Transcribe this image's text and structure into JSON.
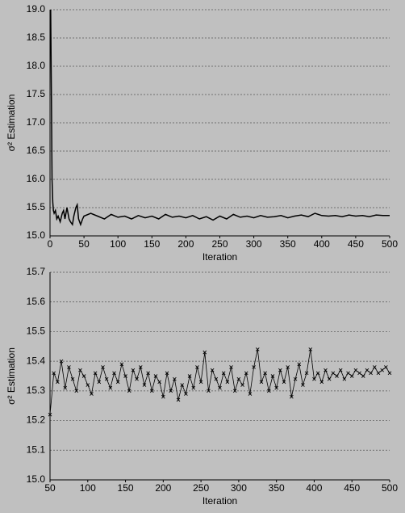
{
  "chart_data": [
    {
      "type": "line",
      "xlabel": "Iteration",
      "ylabel": "σ² Estimation",
      "color": "#000000",
      "grid": true,
      "marker": null,
      "xlim": [
        0,
        500
      ],
      "xticks": [
        0,
        50,
        100,
        150,
        200,
        250,
        300,
        350,
        400,
        450,
        500
      ],
      "ylim": [
        15.0,
        19.0
      ],
      "yticks": [
        {
          "value": 15.0,
          "label": "15.0"
        },
        15.5,
        {
          "value": 16.0,
          "label": "16.0"
        },
        16.5,
        {
          "value": 17.0,
          "label": "17.0"
        },
        17.5,
        {
          "value": 18.0,
          "label": "18.0"
        },
        18.5,
        {
          "value": 19.0,
          "label": "19.0"
        }
      ],
      "x": [
        1,
        2,
        3,
        4,
        5,
        6,
        8,
        10,
        12,
        15,
        18,
        20,
        22,
        25,
        28,
        30,
        33,
        35,
        38,
        40,
        42,
        45,
        48,
        50,
        60,
        70,
        80,
        90,
        100,
        110,
        120,
        130,
        140,
        150,
        160,
        170,
        180,
        190,
        200,
        210,
        220,
        230,
        240,
        250,
        260,
        270,
        280,
        290,
        300,
        310,
        320,
        330,
        340,
        350,
        360,
        370,
        380,
        390,
        400,
        410,
        420,
        430,
        440,
        450,
        460,
        470,
        480,
        490,
        500
      ],
      "values": [
        19.0,
        17.5,
        16.0,
        15.6,
        15.45,
        15.4,
        15.45,
        15.3,
        15.35,
        15.25,
        15.4,
        15.45,
        15.3,
        15.5,
        15.3,
        15.25,
        15.2,
        15.35,
        15.5,
        15.55,
        15.3,
        15.2,
        15.3,
        15.35,
        15.4,
        15.35,
        15.3,
        15.38,
        15.33,
        15.35,
        15.3,
        15.36,
        15.32,
        15.35,
        15.3,
        15.38,
        15.33,
        15.35,
        15.32,
        15.36,
        15.3,
        15.34,
        15.28,
        15.35,
        15.3,
        15.38,
        15.33,
        15.35,
        15.32,
        15.36,
        15.33,
        15.34,
        15.36,
        15.32,
        15.35,
        15.37,
        15.34,
        15.4,
        15.36,
        15.35,
        15.36,
        15.34,
        15.37,
        15.35,
        15.36,
        15.34,
        15.37,
        15.36,
        15.36
      ]
    },
    {
      "type": "line",
      "xlabel": "Iteration",
      "ylabel": "σ² Estimation",
      "color": "#000000",
      "grid": true,
      "marker": "x",
      "xlim": [
        50,
        500
      ],
      "xticks": [
        50,
        100,
        150,
        200,
        250,
        300,
        350,
        400,
        450,
        500
      ],
      "ylim": [
        15.0,
        15.7
      ],
      "yticks": [
        {
          "value": 15.0,
          "label": "15.0"
        },
        15.1,
        15.2,
        15.3,
        15.4,
        15.5,
        15.6,
        15.7
      ],
      "x": [
        50,
        55,
        60,
        65,
        70,
        75,
        80,
        85,
        90,
        95,
        100,
        105,
        110,
        115,
        120,
        125,
        130,
        135,
        140,
        145,
        150,
        155,
        160,
        165,
        170,
        175,
        180,
        185,
        190,
        195,
        200,
        205,
        210,
        215,
        220,
        225,
        230,
        235,
        240,
        245,
        250,
        255,
        260,
        265,
        270,
        275,
        280,
        285,
        290,
        295,
        300,
        305,
        310,
        315,
        320,
        325,
        330,
        335,
        340,
        345,
        350,
        355,
        360,
        365,
        370,
        375,
        380,
        385,
        390,
        395,
        400,
        405,
        410,
        415,
        420,
        425,
        430,
        435,
        440,
        445,
        450,
        455,
        460,
        465,
        470,
        475,
        480,
        485,
        490,
        495,
        500
      ],
      "values": [
        15.22,
        15.36,
        15.33,
        15.4,
        15.31,
        15.38,
        15.34,
        15.3,
        15.37,
        15.35,
        15.32,
        15.29,
        15.36,
        15.33,
        15.38,
        15.34,
        15.31,
        15.36,
        15.33,
        15.39,
        15.35,
        15.3,
        15.37,
        15.34,
        15.38,
        15.32,
        15.36,
        15.3,
        15.35,
        15.33,
        15.28,
        15.36,
        15.3,
        15.34,
        15.27,
        15.32,
        15.29,
        15.35,
        15.31,
        15.38,
        15.33,
        15.43,
        15.3,
        15.37,
        15.34,
        15.31,
        15.36,
        15.33,
        15.38,
        15.3,
        15.34,
        15.32,
        15.36,
        15.29,
        15.38,
        15.44,
        15.33,
        15.36,
        15.3,
        15.35,
        15.31,
        15.37,
        15.33,
        15.38,
        15.28,
        15.34,
        15.39,
        15.32,
        15.36,
        15.44,
        15.34,
        15.36,
        15.33,
        15.37,
        15.34,
        15.36,
        15.35,
        15.37,
        15.34,
        15.36,
        15.35,
        15.37,
        15.36,
        15.35,
        15.37,
        15.36,
        15.38,
        15.36,
        15.37,
        15.38,
        15.36
      ]
    }
  ]
}
